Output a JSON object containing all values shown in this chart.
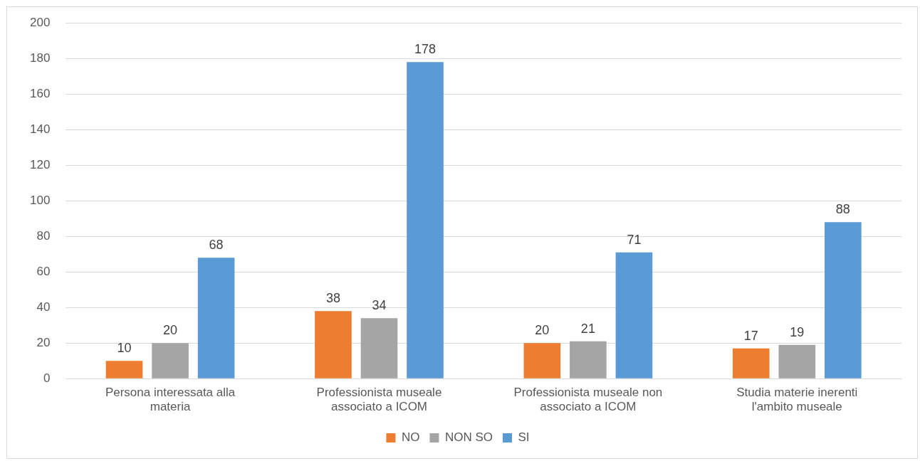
{
  "chart_data": {
    "type": "bar",
    "categories": [
      "Persona interessata alla materia",
      "Professionista museale associato a ICOM",
      "Professionista museale non associato a ICOM",
      "Studia materie inerenti l'ambito museale"
    ],
    "series": [
      {
        "name": "NO",
        "color": "#ed7d31",
        "values": [
          10,
          38,
          20,
          17
        ]
      },
      {
        "name": "NON SO",
        "color": "#a5a5a5",
        "values": [
          20,
          34,
          21,
          19
        ]
      },
      {
        "name": "SI",
        "color": "#5b9bd5",
        "values": [
          68,
          178,
          71,
          88
        ]
      }
    ],
    "ylim": [
      0,
      200
    ],
    "yticks": [
      0,
      20,
      40,
      60,
      80,
      100,
      120,
      140,
      160,
      180,
      200
    ],
    "grid": "y",
    "legend": "bottom",
    "data_labels": true
  }
}
